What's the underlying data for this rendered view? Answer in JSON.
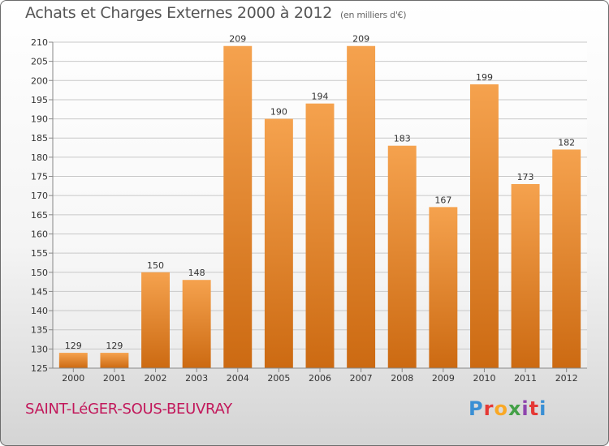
{
  "chart_data": {
    "type": "bar",
    "title": "Achats et Charges Externes 2000 à 2012",
    "subtitle": "(en milliers d'€)",
    "categories": [
      "2000",
      "2001",
      "2002",
      "2003",
      "2004",
      "2005",
      "2006",
      "2007",
      "2008",
      "2009",
      "2010",
      "2011",
      "2012"
    ],
    "values": [
      129,
      129,
      150,
      148,
      209,
      190,
      194,
      209,
      183,
      167,
      199,
      173,
      182
    ],
    "ylim": [
      125,
      210
    ],
    "yticks": [
      125,
      130,
      135,
      140,
      145,
      150,
      155,
      160,
      165,
      170,
      175,
      180,
      185,
      190,
      195,
      200,
      205,
      210
    ],
    "grid": true,
    "legend": "none",
    "bar_color_top": "#f5a24e",
    "bar_color_bottom": "#cc6a12",
    "xlabel": "",
    "ylabel": ""
  },
  "footer": {
    "commune": "SAINT-LéGER-SOUS-BEUVRAY",
    "logo": "Proxiti"
  },
  "colors": {
    "commune_text": "#c2185b",
    "logo_letters": [
      "#3a8fd4",
      "#e53935",
      "#f9a825",
      "#43a047",
      "#8e44ad",
      "#e53935",
      "#3a8fd4"
    ]
  }
}
